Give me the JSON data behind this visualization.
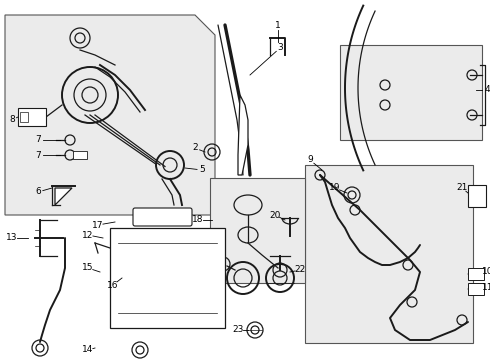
{
  "background_color": "#ffffff",
  "line_color": "#1a1a1a",
  "box_fill": "#ebebeb",
  "figsize": [
    4.9,
    3.6
  ],
  "dpi": 100,
  "font_size": 6.5
}
